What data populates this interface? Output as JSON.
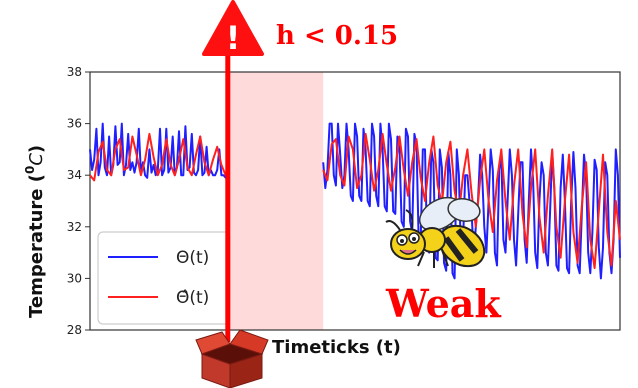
{
  "chart_data": {
    "type": "line",
    "title": "",
    "xlabel": "Timeticks (t)",
    "ylabel_main": "Temperature (",
    "ylabel_sup": "0",
    "ylabel_unit": "C",
    "ylabel_close": ")",
    "yticks": [
      "28",
      "30",
      "32",
      "34",
      "36",
      "38"
    ],
    "ylim": [
      28,
      38
    ],
    "xlim": [
      0,
      100
    ],
    "grid": false,
    "legend": {
      "placement": "lower-left",
      "entries": [
        "Θ(t)",
        "Θ̂(t)"
      ]
    },
    "series": [
      {
        "name": "Θ(t)",
        "color": "#1f1fff",
        "segments": [
          {
            "x": [
              0,
              1,
              2,
              3,
              4,
              5,
              6,
              7,
              8,
              9,
              10,
              11,
              12,
              13,
              14,
              15,
              16,
              17,
              18,
              19,
              20,
              21,
              22,
              23,
              24,
              25,
              26,
              27,
              28,
              29,
              30,
              31,
              32,
              33,
              34,
              35,
              36,
              37,
              38,
              39,
              40,
              41,
              42,
              43,
              44,
              45,
              46,
              47,
              48,
              49,
              50,
              51,
              52,
              53,
              54,
              55,
              56,
              57,
              58,
              59,
              60,
              61,
              62,
              63,
              64,
              65
            ],
            "y": [
              35.0,
              34.2,
              34.6,
              35.8,
              34.0,
              34.5,
              36.0,
              34.3,
              34.0,
              35.5,
              34.0,
              34.4,
              35.9,
              34.4,
              34.5,
              36.0,
              34.0,
              34.4,
              35.6,
              34.2,
              34.5,
              34.1,
              34.5,
              35.8,
              34.1,
              34.5,
              34.0,
              33.9,
              35.0,
              34.1,
              34.4,
              34.0,
              34.2,
              35.8,
              34.0,
              34.2,
              35.8,
              34.1,
              34.3,
              35.5,
              34.0,
              34.3,
              35.7,
              34.0,
              34.0,
              35.9,
              34.2,
              34.3,
              35.6,
              34.1,
              34.0,
              34.2,
              35.5,
              34.0,
              34.1,
              35.1,
              34.0,
              34.2,
              34.0,
              34.0,
              34.2,
              35.0,
              34.0,
              34.0,
              33.9,
              34.0
            ]
          },
          {
            "x": [
              110,
              111,
              112,
              113,
              114,
              115,
              116,
              117,
              118,
              119,
              120,
              121,
              122,
              123,
              124,
              125,
              126,
              127,
              128,
              129,
              130,
              131,
              132,
              133,
              134,
              135,
              136,
              137,
              138,
              139,
              140,
              141,
              142,
              143,
              144,
              145,
              146,
              147,
              148,
              149,
              150,
              151,
              152,
              153,
              154,
              155,
              156,
              157,
              158,
              159,
              160,
              161,
              162,
              163,
              164,
              165,
              166,
              167,
              168,
              169,
              170,
              171,
              172,
              173,
              174,
              175,
              176,
              177,
              178,
              179,
              180,
              181,
              182,
              183,
              184,
              185,
              186,
              187,
              188,
              189,
              190,
              191,
              192,
              193,
              194,
              195,
              196,
              197,
              198,
              199,
              200,
              201,
              202,
              203,
              204,
              205,
              206,
              207,
              208,
              209,
              210,
              211,
              212,
              213,
              214,
              215,
              216,
              217,
              218,
              219,
              220,
              221,
              222,
              223,
              224,
              225,
              226,
              227,
              228,
              229,
              230,
              231,
              232,
              233,
              234,
              235,
              236,
              237,
              238,
              239,
              240,
              241,
              242,
              243,
              244,
              245,
              246,
              247,
              248,
              249,
              250
            ],
            "y": [
              34.5,
              33.5,
              34.2,
              36.0,
              36.0,
              34.0,
              33.6,
              36.0,
              34.8,
              33.5,
              34.0,
              36.0,
              35.0,
              33.2,
              33.0,
              36.0,
              35.5,
              33.2,
              33.0,
              35.8,
              35.0,
              33.0,
              32.8,
              36.0,
              35.5,
              33.2,
              32.8,
              36.0,
              35.0,
              32.8,
              32.6,
              36.0,
              35.4,
              32.6,
              32.5,
              35.5,
              35.0,
              32.2,
              32.0,
              35.8,
              35.5,
              32.2,
              31.8,
              35.6,
              35.2,
              31.6,
              31.5,
              35.0,
              35.0,
              31.2,
              31.0,
              35.0,
              34.5,
              30.8,
              30.7,
              35.0,
              34.3,
              30.6,
              30.3,
              34.9,
              34.0,
              30.2,
              30.0,
              35.0,
              34.0,
              30.8,
              31.5,
              34.0,
              34.0,
              33.0,
              32.6,
              30.8,
              32.0,
              33.0,
              34.8,
              34.0,
              32.0,
              31.0,
              33.0,
              35.0,
              34.2,
              31.0,
              30.5,
              34.2,
              34.8,
              31.5,
              31.0,
              33.0,
              35.0,
              34.0,
              31.5,
              30.5,
              32.5,
              34.5,
              34.5,
              31.5,
              30.6,
              33.0,
              35.0,
              33.8,
              31.0,
              30.4,
              33.0,
              34.5,
              34.0,
              31.0,
              30.5,
              32.5,
              34.9,
              33.5,
              30.5,
              30.3,
              33.5,
              34.8,
              33.0,
              30.4,
              30.2,
              33.0,
              34.9,
              33.5,
              30.5,
              30.2,
              32.5,
              34.8,
              34.0,
              31.0,
              30.2,
              31.8,
              34.6,
              34.2,
              31.2,
              30.0,
              31.2,
              34.5,
              34.0,
              31.0,
              30.2,
              31.5,
              35.0,
              34.0,
              30.8
            ]
          }
        ]
      },
      {
        "name": "Θ̂(t)",
        "color": "#ff2020",
        "segments": [
          {
            "x": [
              0,
              2,
              4,
              6,
              8,
              10,
              12,
              14,
              16,
              18,
              20,
              22,
              24,
              26,
              28,
              30,
              32,
              34,
              36,
              38,
              40,
              42,
              44,
              46,
              48,
              50,
              52,
              54,
              56,
              58,
              60,
              62,
              64,
              65
            ],
            "y": [
              34.0,
              33.8,
              34.9,
              35.3,
              34.2,
              34.0,
              35.0,
              35.4,
              34.2,
              34.3,
              35.5,
              34.8,
              34.0,
              34.6,
              35.6,
              34.7,
              34.0,
              34.4,
              35.4,
              34.4,
              34.0,
              34.6,
              35.4,
              34.3,
              34.0,
              34.8,
              35.5,
              34.5,
              34.0,
              34.6,
              35.1,
              34.4,
              34.0,
              34.2
            ]
          },
          {
            "x": [
              110,
              112,
              114,
              116,
              118,
              120,
              122,
              124,
              126,
              128,
              130,
              132,
              134,
              136,
              138,
              140,
              142,
              144,
              146,
              148,
              150,
              152,
              154,
              156,
              158,
              160,
              162,
              164,
              166,
              168,
              170,
              172,
              174,
              176,
              178,
              180,
              182,
              184,
              186,
              188,
              190,
              192,
              194,
              196,
              198,
              200,
              202,
              204,
              206,
              208,
              210,
              212,
              214,
              216,
              218,
              220,
              222,
              224,
              226,
              228,
              230,
              232,
              234,
              236,
              238,
              240,
              242,
              244,
              246,
              248,
              250
            ],
            "y": [
              34.2,
              33.8,
              35.2,
              35.4,
              34.0,
              33.6,
              35.5,
              35.0,
              33.5,
              34.0,
              35.6,
              34.6,
              33.4,
              34.2,
              35.6,
              34.4,
              33.4,
              34.3,
              35.5,
              34.2,
              33.2,
              34.5,
              35.4,
              33.9,
              33.0,
              34.5,
              35.5,
              33.6,
              32.9,
              34.5,
              35.3,
              33.4,
              32.5,
              34.0,
              35.0,
              33.3,
              32.0,
              33.8,
              35.0,
              33.0,
              31.8,
              33.8,
              35.0,
              33.0,
              31.5,
              33.6,
              35.0,
              32.5,
              31.2,
              33.5,
              35.0,
              32.4,
              31.0,
              33.2,
              35.0,
              32.0,
              30.8,
              33.0,
              34.8,
              31.8,
              30.6,
              32.8,
              34.5,
              31.5,
              30.4,
              32.6,
              34.8,
              31.8,
              30.5,
              33.0,
              31.5
            ]
          }
        ]
      }
    ],
    "gap_region": {
      "x": [
        65,
        110
      ],
      "color": "#ffd4d4"
    },
    "alert_line": {
      "x": 65,
      "color": "#ff0000"
    }
  },
  "annotations": {
    "threshold_text": "h < 0.15",
    "threshold_color": "#ff0000",
    "warning_icon_text": "!",
    "warning_icon_color": "#ff1010",
    "weak_text": "Weak",
    "weak_color": "#ff0000",
    "bee_icon": "bee-icon",
    "box_icon": "open-box-icon"
  }
}
